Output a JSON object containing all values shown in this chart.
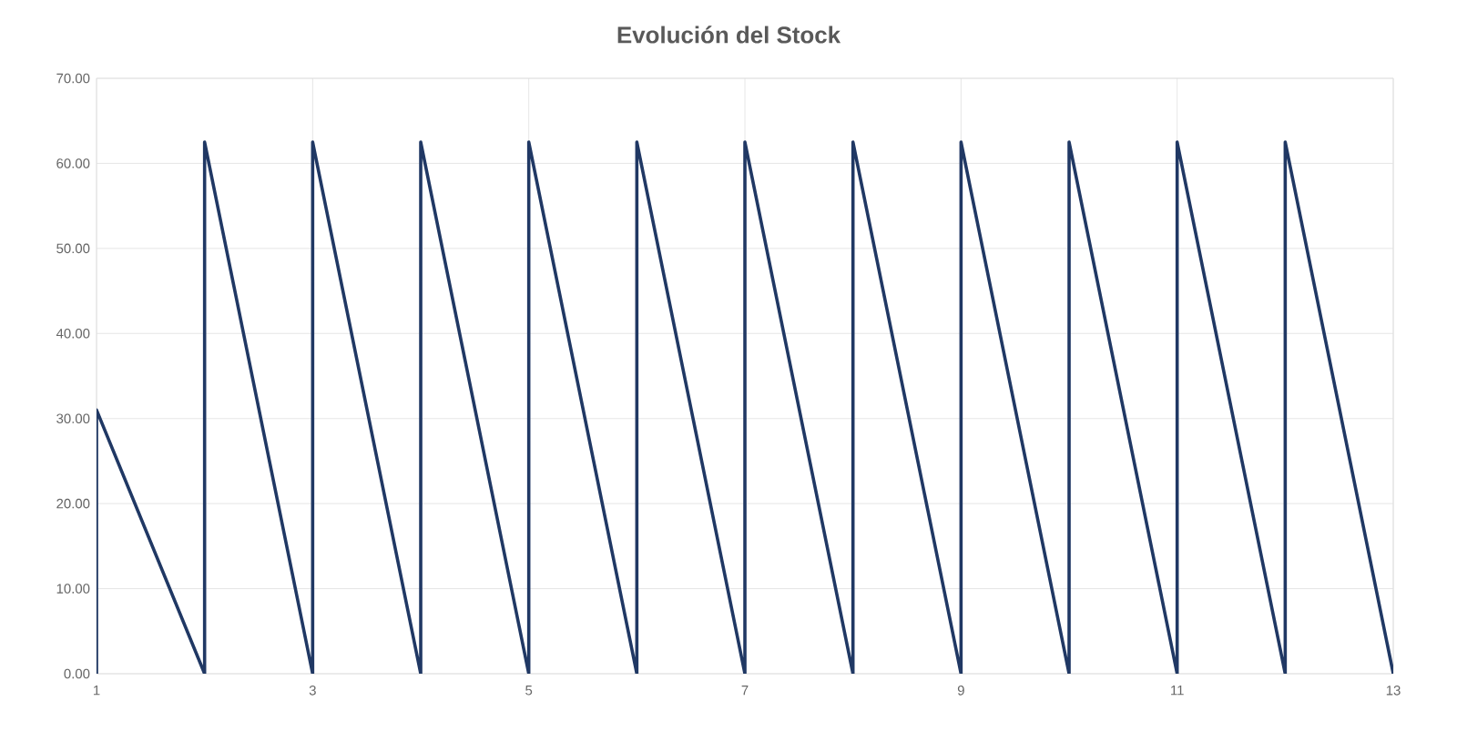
{
  "chart_data": {
    "type": "line",
    "title": "Evolución del Stock",
    "x": [
      1,
      1,
      2,
      2,
      3,
      3,
      4,
      4,
      5,
      5,
      6,
      6,
      7,
      7,
      8,
      8,
      9,
      9,
      10,
      10,
      11,
      11,
      12,
      12,
      13
    ],
    "series": [
      {
        "color": "#203864",
        "values": [
          0,
          31,
          0,
          62.5,
          0,
          62.5,
          0,
          62.5,
          0,
          62.5,
          0,
          62.5,
          0,
          62.5,
          0,
          62.5,
          0,
          62.5,
          0,
          62.5,
          0,
          62.5,
          0,
          62.5,
          0
        ]
      }
    ],
    "xlim": [
      1,
      13
    ],
    "xticks": [
      1,
      3,
      5,
      7,
      9,
      11,
      13
    ],
    "ylim": [
      0,
      70
    ],
    "yticks": [
      {
        "value": 0,
        "label": "0.00"
      },
      {
        "value": 10,
        "label": "10.00"
      },
      {
        "value": 20,
        "label": "20.00"
      },
      {
        "value": 30,
        "label": "30.00"
      },
      {
        "value": 40,
        "label": "40.00"
      },
      {
        "value": 50,
        "label": "50.00"
      },
      {
        "value": 60,
        "label": "60.00"
      },
      {
        "value": 70,
        "label": "70.00"
      }
    ],
    "grid": true,
    "marker": "none",
    "line_style": "solid",
    "legend": false
  }
}
